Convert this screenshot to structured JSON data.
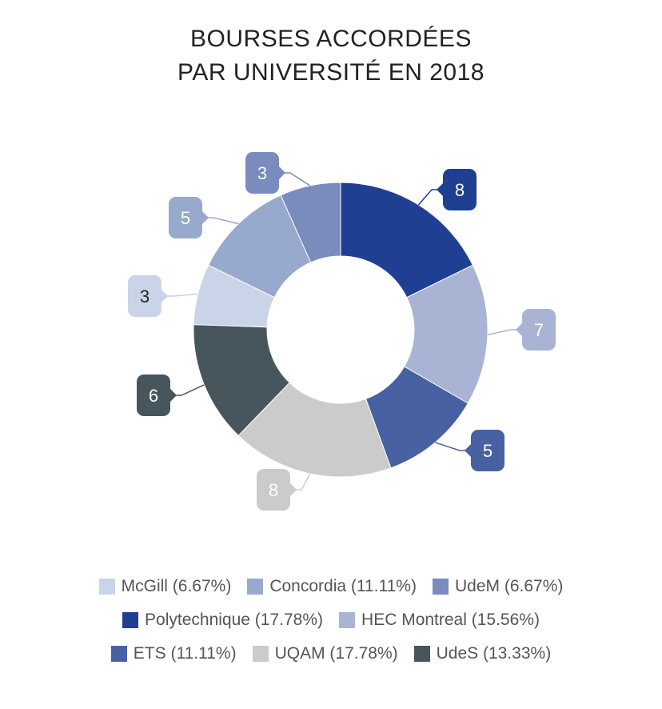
{
  "chart_data": {
    "type": "donut",
    "title_lines": [
      "BOURSES ACCORDÉES",
      "PAR UNIVERSITÉ EN 2018"
    ],
    "slices": [
      {
        "label": "Polytechnique",
        "value": 8,
        "percent": "17.78%",
        "color": "#1f3f93",
        "label_text_color": "#ffffff"
      },
      {
        "label": "HEC Montreal",
        "value": 7,
        "percent": "15.56%",
        "color": "#a9b4d4",
        "label_text_color": "#ffffff"
      },
      {
        "label": "ETS",
        "value": 5,
        "percent": "11.11%",
        "color": "#4861a3",
        "label_text_color": "#ffffff"
      },
      {
        "label": "UQAM",
        "value": 8,
        "percent": "17.78%",
        "color": "#cbcbcb",
        "label_text_color": "#ffffff"
      },
      {
        "label": "UdeS",
        "value": 6,
        "percent": "13.33%",
        "color": "#47555c",
        "label_text_color": "#ffffff"
      },
      {
        "label": "McGill",
        "value": 3,
        "percent": "6.67%",
        "color": "#c9d4e9",
        "label_text_color": "#222222"
      },
      {
        "label": "Concordia",
        "value": 5,
        "percent": "11.11%",
        "color": "#97a9cc",
        "label_text_color": "#ffffff"
      },
      {
        "label": "UdeM",
        "value": 3,
        "percent": "6.67%",
        "color": "#7a8bbd",
        "label_text_color": "#ffffff"
      }
    ],
    "legend_rows": [
      [
        "McGill",
        "Concordia",
        "UdeM"
      ],
      [
        "Polytechnique",
        "HEC Montreal"
      ],
      [
        "ETS",
        "UQAM",
        "UdeS"
      ]
    ],
    "legend_position": "bottom"
  }
}
